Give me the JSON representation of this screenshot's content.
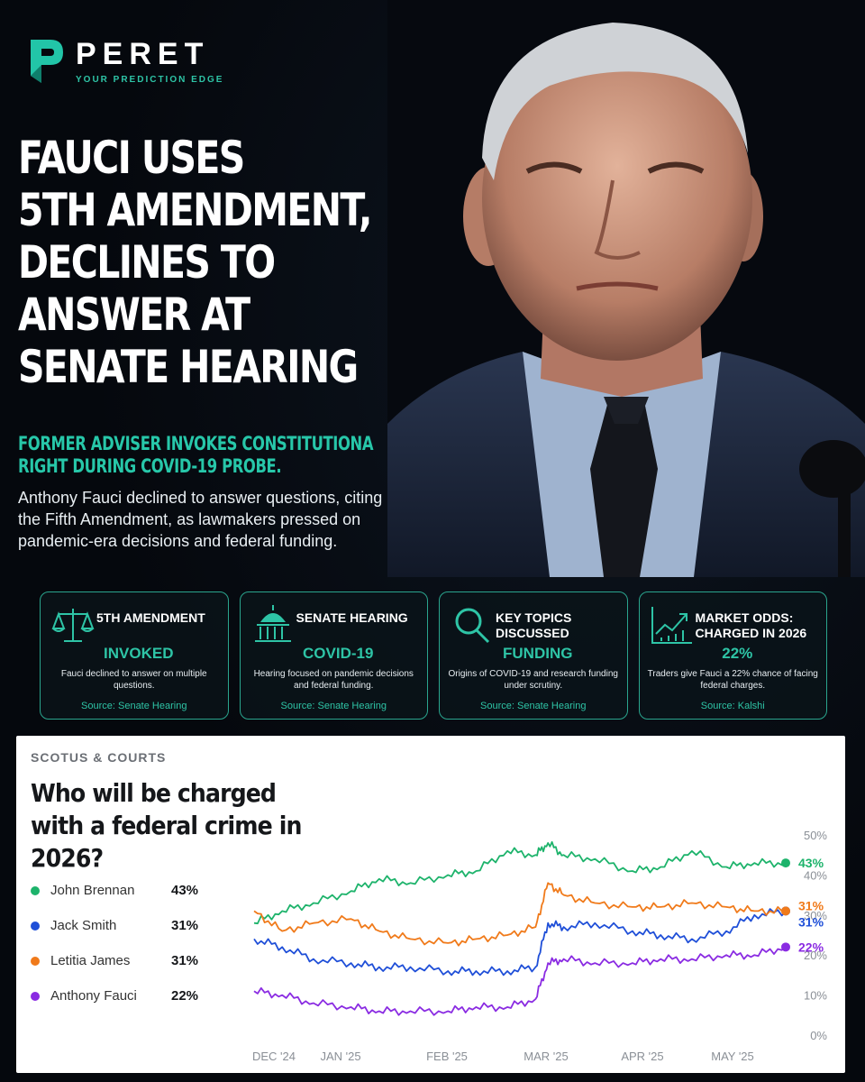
{
  "brand": {
    "name": "PERET",
    "tagline": "YOUR PREDICTION EDGE"
  },
  "headline": [
    "FAUCI USES",
    "5TH AMENDMENT,",
    "DECLINES TO",
    "ANSWER AT",
    "SENATE HEARING"
  ],
  "subheadline": [
    "FORMER ADVISER INVOKES CONSTITUTIONA",
    "RIGHT DURING COVID-19 PROBE."
  ],
  "body": "Anthony Fauci declined to answer questions, citing the Fifth Amendment, as lawmakers pressed on pandemic-era decisions and federal funding.",
  "cards": [
    {
      "icon": "scales-icon",
      "title": "5TH AMENDMENT",
      "value": "INVOKED",
      "desc": "Fauci declined to answer on multiple questions.",
      "source": "Source: Senate Hearing"
    },
    {
      "icon": "capitol-icon",
      "title": "SENATE HEARING",
      "value": "COVID-19",
      "desc": "Hearing focused on pandemic decisions and federal funding.",
      "source": "Source: Senate Hearing"
    },
    {
      "icon": "magnifier-icon",
      "title": "KEY TOPICS DISCUSSED",
      "value": "FUNDING",
      "desc": "Origins of COVID-19 and research funding under scrutiny.",
      "source": "Source: Senate Hearing"
    },
    {
      "icon": "trend-chart-icon",
      "title": "MARKET ODDS: CHARGED IN 2026",
      "value": "22%",
      "desc": "Traders give Fauci a 22% chance of facing federal charges.",
      "source": "Source: Kalshi"
    }
  ],
  "chart_panel": {
    "category": "SCOTUS & COURTS",
    "title": "Who will be charged with a federal crime in 2026?"
  },
  "colors": {
    "accent": "#2ec4a6",
    "brennan": "#1db36b",
    "smith": "#1f4fd8",
    "james": "#f07a1a",
    "fauci": "#8a2be2"
  },
  "chart_data": {
    "type": "line",
    "title": "Who will be charged with a federal crime in 2026?",
    "xlabel": "",
    "ylabel": "",
    "ylim": [
      0,
      50
    ],
    "yticks": [
      "0%",
      "10%",
      "20%",
      "30%",
      "40%",
      "50%"
    ],
    "x_ticks": [
      "DEC '24",
      "JAN '25",
      "FEB '25",
      "MAR '25",
      "APR '25",
      "MAY '25"
    ],
    "legend_position": "left",
    "grid": false,
    "series": [
      {
        "name": "John Brennan",
        "label": "43%",
        "color": "#1db36b",
        "x": [
          "2024-12-01",
          "2024-12-10",
          "2024-12-20",
          "2025-01-01",
          "2025-01-10",
          "2025-01-20",
          "2025-02-01",
          "2025-02-10",
          "2025-02-20",
          "2025-03-01",
          "2025-03-05",
          "2025-03-10",
          "2025-03-20",
          "2025-04-01",
          "2025-04-10",
          "2025-04-20",
          "2025-05-01",
          "2025-05-10",
          "2025-05-20"
        ],
        "values": [
          28,
          31,
          33,
          36,
          39,
          38,
          40,
          41,
          46,
          45,
          48,
          45,
          44,
          41,
          42,
          46,
          42,
          43,
          43
        ]
      },
      {
        "name": "Jack Smith",
        "label": "31%",
        "color": "#1f4fd8",
        "x": [
          "2024-12-01",
          "2024-12-10",
          "2024-12-20",
          "2025-01-01",
          "2025-01-10",
          "2025-01-20",
          "2025-02-01",
          "2025-02-10",
          "2025-02-20",
          "2025-03-01",
          "2025-03-05",
          "2025-03-10",
          "2025-03-20",
          "2025-04-01",
          "2025-04-10",
          "2025-04-20",
          "2025-05-01",
          "2025-05-10",
          "2025-05-20"
        ],
        "values": [
          24,
          22,
          19,
          18,
          17,
          17,
          16,
          16,
          16,
          17,
          28,
          27,
          28,
          26,
          25,
          24,
          26,
          30,
          31
        ]
      },
      {
        "name": "Letitia James",
        "label": "31%",
        "color": "#f07a1a",
        "x": [
          "2024-12-01",
          "2024-12-10",
          "2024-12-20",
          "2025-01-01",
          "2025-01-10",
          "2025-01-20",
          "2025-02-01",
          "2025-02-10",
          "2025-02-20",
          "2025-03-01",
          "2025-03-05",
          "2025-03-10",
          "2025-03-20",
          "2025-04-01",
          "2025-04-10",
          "2025-04-20",
          "2025-05-01",
          "2025-05-10",
          "2025-05-20"
        ],
        "values": [
          31,
          26,
          28,
          29,
          26,
          24,
          23,
          24,
          25,
          27,
          38,
          35,
          33,
          32,
          32,
          33,
          32,
          31,
          31
        ]
      },
      {
        "name": "Anthony Fauci",
        "label": "22%",
        "color": "#8a2be2",
        "x": [
          "2024-12-01",
          "2024-12-10",
          "2024-12-20",
          "2025-01-01",
          "2025-01-10",
          "2025-01-20",
          "2025-02-01",
          "2025-02-10",
          "2025-02-20",
          "2025-03-01",
          "2025-03-05",
          "2025-03-10",
          "2025-03-20",
          "2025-04-01",
          "2025-04-10",
          "2025-04-20",
          "2025-05-01",
          "2025-05-10",
          "2025-05-20"
        ],
        "values": [
          11,
          10,
          8,
          7,
          6,
          6,
          6,
          7,
          7,
          9,
          18,
          19,
          18,
          18,
          19,
          19,
          20,
          20,
          22
        ]
      }
    ]
  }
}
